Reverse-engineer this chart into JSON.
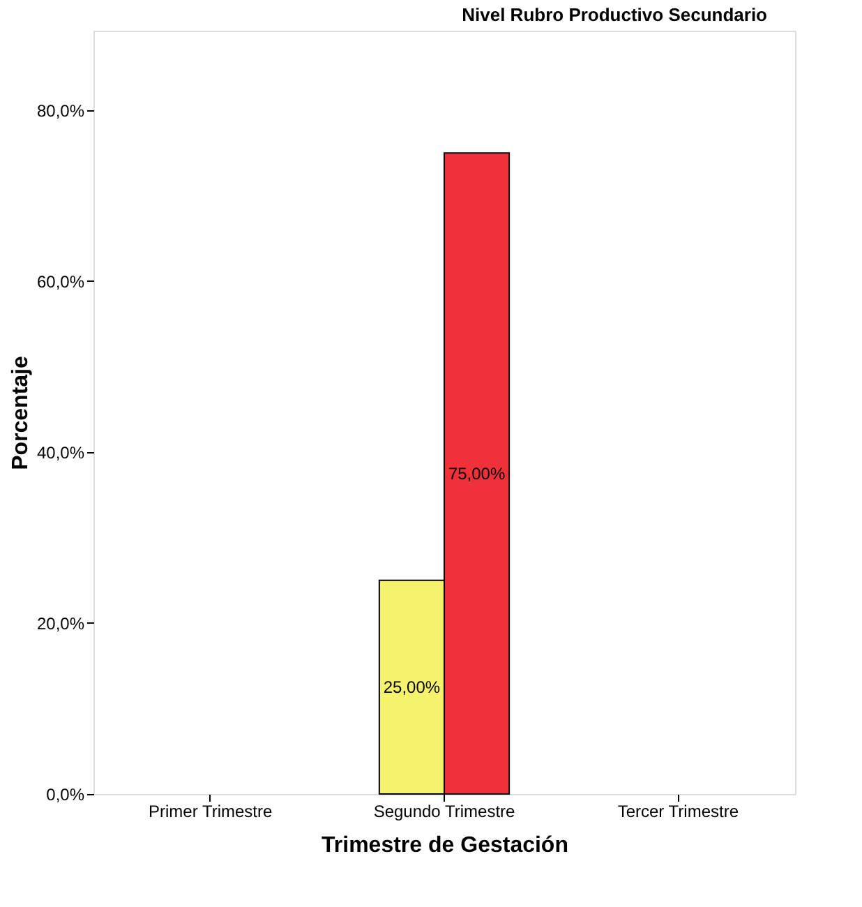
{
  "chart_data": {
    "type": "bar",
    "title": "Nivel Rubro Productivo Secundario",
    "xlabel": "Trimestre de Gestación",
    "ylabel": "Porcentaje",
    "categories": [
      "Primer Trimestre",
      "Segundo Trimestre",
      "Tercer Trimestre"
    ],
    "series": [
      {
        "color": "#f7f26b",
        "values": [
          null,
          25,
          null
        ],
        "value_labels": [
          null,
          "25,00%",
          null
        ]
      },
      {
        "color": "#f0313a",
        "values": [
          null,
          75,
          null
        ],
        "value_labels": [
          null,
          "75,00%",
          null
        ]
      }
    ],
    "ylim": [
      0,
      89.3
    ],
    "yticks": [
      {
        "value": 0,
        "label": "0,0%"
      },
      {
        "value": 20,
        "label": "20,0%"
      },
      {
        "value": 40,
        "label": "40,0%"
      },
      {
        "value": 60,
        "label": "60,0%"
      },
      {
        "value": 80,
        "label": "80,0%"
      }
    ],
    "grid": false,
    "legend": false
  }
}
